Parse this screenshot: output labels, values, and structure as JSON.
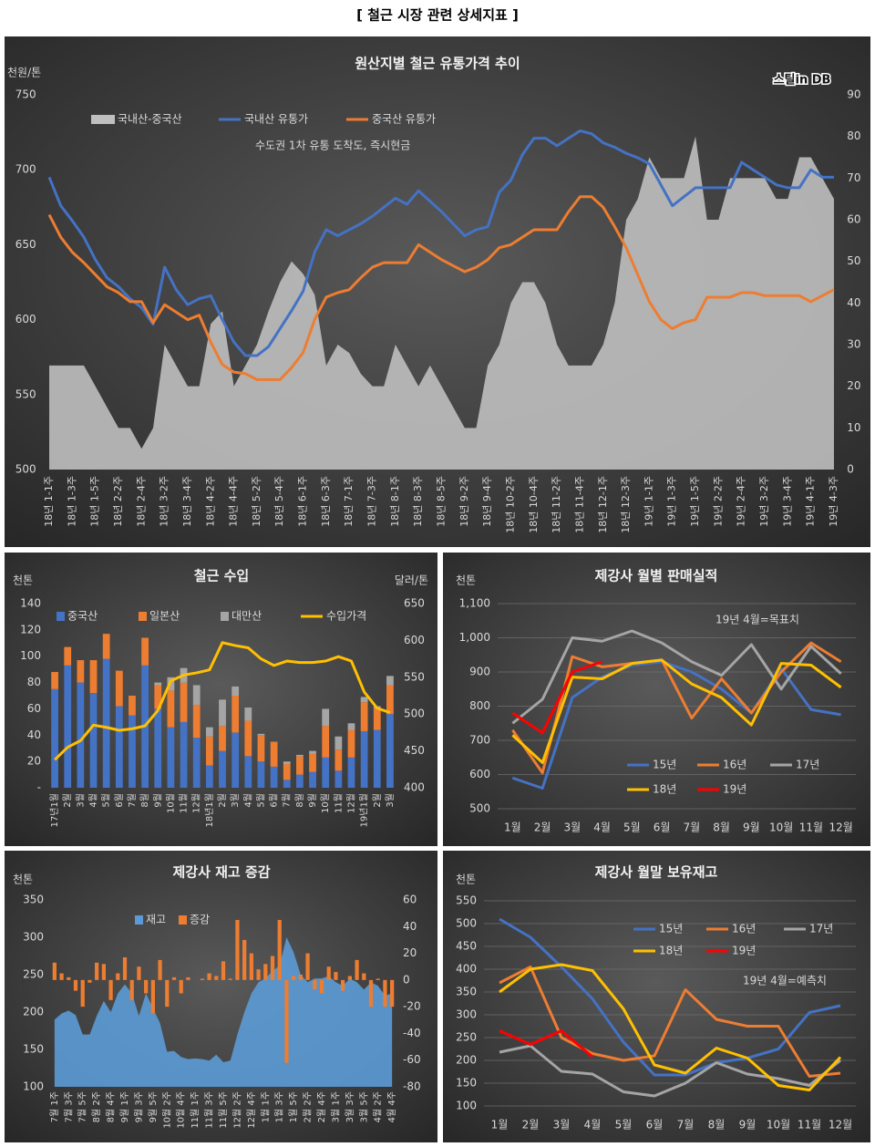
{
  "heading": "[ 철근 시장 관련 상세지표 ]",
  "chart_data": [
    {
      "type": "combo",
      "title": "원산지별 철근 유통가격 추이",
      "y_label": "천원/톤",
      "note": "수도권 1차 유통 도착도, 즉시현금",
      "logo": "스틸in DB",
      "categories": [
        "18년 1-1주",
        null,
        "18년 1-3주",
        null,
        "18년 1-5주",
        null,
        "18년 2-2주",
        null,
        "18년 2-4주",
        null,
        "18년 3-2주",
        null,
        "18년 3-4주",
        null,
        "18년 4-2주",
        null,
        "18년 4-4주",
        null,
        "18년 5-2주",
        null,
        "18년 5-4주",
        null,
        "18년 6-1주",
        null,
        "18년 6-3주",
        null,
        "18년 7-1주",
        null,
        "18년 7-3주",
        null,
        "18년 8-1주",
        null,
        "18년 8-3주",
        null,
        "18년 8-5주",
        null,
        "18년 9-2주",
        null,
        "18년 9-4주",
        null,
        "18년 10-2주",
        null,
        "18년 10-4주",
        null,
        "18년 11-2주",
        null,
        "18년 11-4주",
        null,
        "18년 12-1주",
        null,
        "18년 12-3주",
        null,
        "19년 1-1주",
        null,
        "19년 1-3주",
        null,
        "19년 1-5주",
        null,
        "19년 2-2주",
        null,
        "19년 2-4주",
        null,
        "19년 3-2주",
        null,
        "19년 3-4주",
        null,
        "19년 4-1주",
        null,
        "19년 4-3주"
      ],
      "ylim": [
        500,
        750
      ],
      "yticks": [
        500,
        550,
        600,
        650,
        700,
        750
      ],
      "y2lim": [
        0,
        90
      ],
      "y2ticks": [
        0,
        10,
        20,
        30,
        40,
        50,
        60,
        70,
        80,
        90
      ],
      "grid": false,
      "series": [
        {
          "name": "국내산-중국산",
          "type": "area",
          "axis": "y2",
          "color": "#bfbfbf",
          "values": [
            25,
            25,
            25,
            25,
            20,
            15,
            10,
            10,
            5,
            10,
            30,
            25,
            20,
            20,
            35,
            38,
            20,
            25,
            30,
            38,
            45,
            50,
            47,
            42,
            25,
            30,
            28,
            23,
            20,
            20,
            30,
            25,
            20,
            25,
            20,
            15,
            10,
            10,
            25,
            30,
            40,
            45,
            45,
            40,
            30,
            25,
            25,
            25,
            30,
            40,
            60,
            65,
            75,
            70,
            70,
            70,
            80,
            60,
            60,
            70,
            70,
            70,
            70,
            65,
            65,
            75,
            75,
            70,
            65
          ]
        },
        {
          "name": "국내산 유통가",
          "type": "line",
          "color": "#4472c4",
          "values": [
            695,
            676,
            666,
            655,
            640,
            628,
            622,
            614,
            608,
            597,
            635,
            620,
            610,
            614,
            616,
            600,
            585,
            576,
            576,
            582,
            594,
            606,
            619,
            645,
            660,
            656,
            660,
            664,
            669,
            675,
            681,
            677,
            686,
            679,
            672,
            664,
            656,
            660,
            662,
            685,
            693,
            710,
            721,
            721,
            716,
            721,
            726,
            724,
            718,
            715,
            711,
            708,
            704,
            690,
            676,
            682,
            688,
            688,
            688,
            688,
            705,
            700,
            695,
            690,
            688,
            688,
            700,
            695,
            695
          ]
        },
        {
          "name": "중국산 유통가",
          "type": "line",
          "color": "#ed7d31",
          "values": [
            670,
            655,
            645,
            638,
            630,
            622,
            618,
            612,
            612,
            598,
            610,
            605,
            600,
            603,
            585,
            570,
            565,
            564,
            560,
            560,
            560,
            568,
            578,
            600,
            615,
            618,
            620,
            628,
            635,
            638,
            638,
            638,
            650,
            645,
            640,
            636,
            632,
            635,
            640,
            648,
            650,
            655,
            660,
            660,
            660,
            672,
            682,
            682,
            675,
            662,
            648,
            630,
            612,
            600,
            594,
            598,
            600,
            615,
            615,
            615,
            618,
            618,
            616,
            616,
            616,
            616,
            612,
            616,
            620
          ]
        }
      ]
    },
    {
      "type": "combo",
      "title": "철근 수입",
      "y_label": "천톤",
      "y2_label": "달러/톤",
      "stacked": true,
      "categories": [
        "17년1월",
        "2월",
        "3월",
        "4월",
        "5월",
        "6월",
        "7월",
        "8월",
        "9월",
        "10월",
        "11월",
        "12월",
        "18년1월",
        "2월",
        "3월",
        "4월",
        "5월",
        "6월",
        "7월",
        "8월",
        "9월",
        "10월",
        "11월",
        "12월",
        "19년1월",
        "2월",
        "3월"
      ],
      "ylim": [
        0,
        140
      ],
      "yticks": [
        {
          "value": 0,
          "label": "-"
        },
        20,
        40,
        60,
        80,
        100,
        120,
        140
      ],
      "y2lim": [
        400,
        650
      ],
      "y2ticks": [
        400,
        450,
        500,
        550,
        600,
        650
      ],
      "grid": false,
      "series": [
        {
          "name": "중국산",
          "type": "bar",
          "color": "#4472c4",
          "values": [
            75,
            93,
            80,
            72,
            98,
            62,
            55,
            93,
            60,
            46,
            50,
            38,
            17,
            28,
            42,
            24,
            20,
            16,
            6,
            10,
            12,
            23,
            13,
            23,
            43,
            44,
            56
          ]
        },
        {
          "name": "일본산",
          "type": "bar",
          "color": "#ed7d31",
          "values": [
            13,
            14,
            17,
            25,
            19,
            27,
            15,
            21,
            18,
            28,
            30,
            25,
            22,
            19,
            28,
            27,
            20,
            19,
            12,
            14,
            14,
            24,
            16,
            21,
            22,
            16,
            22
          ]
        },
        {
          "name": "대만산",
          "type": "bar",
          "color": "#a5a5a5",
          "values": [
            0,
            0,
            0,
            0,
            0,
            0,
            0,
            0,
            2,
            10,
            11,
            15,
            7,
            20,
            7,
            10,
            1,
            0,
            2,
            1,
            2,
            13,
            10,
            5,
            4,
            2,
            7
          ]
        },
        {
          "name": "수입가격",
          "type": "line",
          "axis": "y2",
          "color": "#ffc000",
          "values": [
            438,
            455,
            464,
            485,
            482,
            478,
            480,
            484,
            505,
            545,
            553,
            556,
            560,
            597,
            593,
            590,
            575,
            566,
            572,
            570,
            570,
            572,
            578,
            572,
            530,
            508,
            502
          ]
        }
      ]
    },
    {
      "type": "line",
      "title": "제강사 월별 판매실적",
      "y_label": "천톤",
      "note": "19년 4월=목표치",
      "categories": [
        "1월",
        "2월",
        "3월",
        "4월",
        "5월",
        "6월",
        "7월",
        "8월",
        "9월",
        "10월",
        "11월",
        "12월"
      ],
      "ylim": [
        500,
        1100
      ],
      "yticks": [
        500,
        600,
        700,
        800,
        900,
        {
          "value": 1000,
          "label": "1,000"
        },
        {
          "value": 1100,
          "label": "1,100"
        }
      ],
      "grid": true,
      "series": [
        {
          "name": "15년",
          "color": "#4472c4",
          "values": [
            590,
            560,
            825,
            885,
            920,
            930,
            900,
            850,
            780,
            910,
            790,
            775
          ]
        },
        {
          "name": "16년",
          "color": "#ed7d31",
          "values": [
            730,
            605,
            945,
            915,
            925,
            935,
            765,
            880,
            780,
            900,
            985,
            930
          ]
        },
        {
          "name": "17년",
          "color": "#a5a5a5",
          "values": [
            750,
            820,
            1000,
            990,
            1020,
            985,
            930,
            890,
            980,
            850,
            975,
            895
          ]
        },
        {
          "name": "18년",
          "color": "#ffc000",
          "values": [
            715,
            635,
            885,
            880,
            925,
            935,
            865,
            825,
            745,
            925,
            920,
            855
          ]
        },
        {
          "name": "19년",
          "color": "#ff0000",
          "values": [
            780,
            722,
            900,
            930,
            null,
            null,
            null,
            null,
            null,
            null,
            null,
            null
          ]
        }
      ]
    },
    {
      "type": "combo",
      "title": "제강사 재고 증감",
      "y_label": "천톤",
      "categories": [
        "7월 1주",
        null,
        "7월 3주",
        null,
        "7월 5주",
        null,
        "8월 2주",
        null,
        "8월 4주",
        null,
        "9월 1주",
        null,
        "9월 3주",
        null,
        "9월 5주",
        null,
        "10월 2주",
        null,
        "10월 4주",
        null,
        "11월 1주",
        null,
        "11월 3주",
        null,
        "11월 5주",
        null,
        "12월 2주",
        null,
        "12월 4주",
        null,
        "1월 1주",
        null,
        "1월 3주",
        null,
        "1월 5주",
        null,
        "2월 2주",
        null,
        "2월 4주",
        null,
        "3월 1주",
        null,
        "3월 3주",
        null,
        "3월 5주",
        null,
        "4월 2주",
        null,
        "4월 4주"
      ],
      "ylim": [
        100,
        350
      ],
      "yticks": [
        100,
        150,
        200,
        250,
        300,
        350
      ],
      "y2lim": [
        -80,
        60
      ],
      "y2ticks": [
        -80,
        -60,
        -40,
        -20,
        0,
        20,
        40,
        60
      ],
      "grid": false,
      "series": [
        {
          "name": "재고",
          "type": "area",
          "color": "#5b9bd5",
          "values": [
            190,
            198,
            202,
            196,
            170,
            170,
            195,
            215,
            200,
            225,
            237,
            225,
            195,
            225,
            205,
            185,
            147,
            148,
            140,
            137,
            138,
            137,
            135,
            143,
            133,
            135,
            170,
            200,
            225,
            240,
            245,
            255,
            262,
            300,
            280,
            250,
            240,
            245,
            245,
            248,
            240,
            235,
            245,
            240,
            230,
            240,
            235,
            222,
            225
          ]
        },
        {
          "name": "증감",
          "type": "bar",
          "axis": "y2",
          "color": "#ed7d31",
          "values": [
            13,
            5,
            2,
            -8,
            -20,
            -2,
            13,
            12,
            -15,
            5,
            17,
            -15,
            10,
            -10,
            -25,
            15,
            -20,
            2,
            -10,
            2,
            0,
            1,
            5,
            3,
            14,
            1,
            45,
            30,
            20,
            8,
            12,
            18,
            45,
            -62,
            3,
            4,
            20,
            -7,
            -10,
            10,
            6,
            -8,
            3,
            15,
            5,
            -20,
            1,
            -20,
            -20
          ]
        }
      ]
    },
    {
      "type": "line",
      "title": "제강사 월말 보유재고",
      "y_label": "천톤",
      "note": "19년 4월=예측치",
      "categories": [
        "1월",
        "2월",
        "3월",
        "4월",
        "5월",
        "6월",
        "7월",
        "8월",
        "9월",
        "10월",
        "11월",
        "12월"
      ],
      "ylim": [
        100,
        550
      ],
      "yticks": [
        100,
        150,
        200,
        250,
        300,
        350,
        400,
        450,
        500,
        550
      ],
      "grid": true,
      "series": [
        {
          "name": "15년",
          "color": "#4472c4",
          "values": [
            510,
            470,
            405,
            335,
            240,
            168,
            168,
            195,
            205,
            225,
            305,
            320
          ]
        },
        {
          "name": "16년",
          "color": "#ed7d31",
          "values": [
            370,
            405,
            250,
            215,
            200,
            210,
            355,
            290,
            275,
            275,
            165,
            172
          ]
        },
        {
          "name": "17년",
          "color": "#a5a5a5",
          "values": [
            218,
            232,
            176,
            170,
            131,
            122,
            150,
            195,
            170,
            160,
            145,
            200
          ]
        },
        {
          "name": "18년",
          "color": "#ffc000",
          "values": [
            350,
            400,
            410,
            397,
            313,
            190,
            172,
            227,
            205,
            145,
            135,
            207
          ]
        },
        {
          "name": "19년",
          "color": "#ff0000",
          "values": [
            265,
            235,
            265,
            208,
            null,
            null,
            null,
            null,
            null,
            null,
            null,
            null
          ]
        }
      ]
    }
  ]
}
